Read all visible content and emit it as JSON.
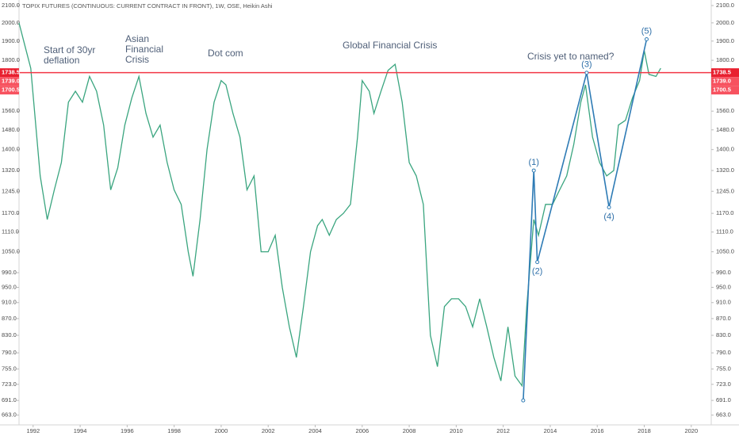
{
  "chart_data": {
    "type": "line",
    "title": "TOPIX FUTURES (CONTINUOUS: CURRENT CONTRACT IN FRONT), 1W, OSE, Heikin Ashi",
    "log_scale": true,
    "grid": false,
    "color": "#3aa57f",
    "x": [
      1991.4,
      1991.6,
      1991.9,
      1992.3,
      1992.6,
      1992.9,
      1993.2,
      1993.5,
      1993.8,
      1994.1,
      1994.4,
      1994.7,
      1995.0,
      1995.3,
      1995.6,
      1995.9,
      1996.2,
      1996.5,
      1996.8,
      1997.1,
      1997.4,
      1997.7,
      1998.0,
      1998.3,
      1998.6,
      1998.8,
      1999.1,
      1999.4,
      1999.7,
      2000.0,
      2000.2,
      2000.5,
      2000.8,
      2001.1,
      2001.4,
      2001.7,
      2002.0,
      2002.3,
      2002.6,
      2002.9,
      2003.2,
      2003.5,
      2003.8,
      2004.1,
      2004.3,
      2004.6,
      2004.9,
      2005.2,
      2005.5,
      2005.8,
      2006.0,
      2006.3,
      2006.5,
      2006.8,
      2007.1,
      2007.4,
      2007.7,
      2008.0,
      2008.3,
      2008.6,
      2008.9,
      2009.2,
      2009.5,
      2009.8,
      2010.1,
      2010.4,
      2010.7,
      2011.0,
      2011.3,
      2011.6,
      2011.9,
      2012.2,
      2012.5,
      2012.8,
      2013.0,
      2013.3,
      2013.5,
      2013.8,
      2014.1,
      2014.4,
      2014.7,
      2015.0,
      2015.3,
      2015.5,
      2015.8,
      2016.1,
      2016.4,
      2016.7,
      2016.9,
      2017.2,
      2017.5,
      2017.8,
      2018.0,
      2018.2,
      2018.5,
      2018.7
    ],
    "values": [
      2000,
      1900,
      1760,
      1300,
      1150,
      1250,
      1350,
      1600,
      1650,
      1600,
      1720,
      1650,
      1500,
      1250,
      1330,
      1500,
      1620,
      1720,
      1550,
      1450,
      1500,
      1350,
      1250,
      1200,
      1050,
      980,
      1150,
      1400,
      1600,
      1700,
      1680,
      1550,
      1450,
      1250,
      1300,
      1050,
      1050,
      1100,
      950,
      850,
      780,
      900,
      1050,
      1130,
      1150,
      1100,
      1150,
      1170,
      1200,
      1450,
      1700,
      1650,
      1550,
      1650,
      1750,
      1780,
      1600,
      1350,
      1300,
      1200,
      830,
      760,
      900,
      920,
      920,
      900,
      850,
      920,
      850,
      780,
      730,
      850,
      740,
      720,
      900,
      1150,
      1100,
      1200,
      1200,
      1250,
      1300,
      1420,
      1600,
      1680,
      1450,
      1350,
      1300,
      1320,
      1500,
      1520,
      1620,
      1700,
      1850,
      1730,
      1720,
      1760
    ],
    "xlim": [
      1991.4,
      2020.85
    ],
    "xticks": [
      1992,
      1994,
      1996,
      1998,
      2000,
      2002,
      2004,
      2006,
      2008,
      2010,
      2012,
      2014,
      2016,
      2018,
      2020
    ],
    "ylim": [
      645,
      2133
    ],
    "yticks": [
      {
        "value": 663,
        "label": "663.0"
      },
      {
        "value": 691,
        "label": "691.0"
      },
      {
        "value": 723,
        "label": "723.0"
      },
      {
        "value": 755,
        "label": "755.0"
      },
      {
        "value": 790,
        "label": "790.0"
      },
      {
        "value": 830,
        "label": "830.0"
      },
      {
        "value": 870,
        "label": "870.0"
      },
      {
        "value": 910,
        "label": "910.0"
      },
      {
        "value": 950,
        "label": "950.0"
      },
      {
        "value": 990,
        "label": "990.0"
      },
      {
        "value": 1050,
        "label": "1050.0"
      },
      {
        "value": 1110,
        "label": "1110.0"
      },
      {
        "value": 1170,
        "label": "1170.0"
      },
      {
        "value": 1245,
        "label": "1245.0"
      },
      {
        "value": 1320,
        "label": "1320.0"
      },
      {
        "value": 1400,
        "label": "1400.0"
      },
      {
        "value": 1480,
        "label": "1480.0"
      },
      {
        "value": 1560,
        "label": "1560.0"
      },
      {
        "value": 1800,
        "label": "1800.0"
      },
      {
        "value": 1900,
        "label": "1900.0"
      },
      {
        "value": 2000,
        "label": "2000.0"
      },
      {
        "value": 2100,
        "label": "2100.0"
      }
    ],
    "price_labels": [
      {
        "value": 1738.5,
        "label": "1738.5"
      },
      {
        "value": 1739.0,
        "label": "1739.0"
      },
      {
        "value": 1700.5,
        "label": "1700.5"
      }
    ],
    "annotations": [
      [
        "Start of 30yr",
        "deflation"
      ],
      [
        "Asian",
        "Financial",
        "Crisis"
      ],
      [
        "Dot com"
      ],
      [
        "Global Financial Crisis"
      ],
      [
        "Crisis yet to named?"
      ]
    ],
    "wave": {
      "labels": [
        null,
        "(1)",
        "(2)",
        "(3)",
        "(4)",
        "(5)"
      ],
      "x": [
        2012.85,
        2013.3,
        2013.45,
        2015.55,
        2016.5,
        2018.1
      ],
      "y": [
        691,
        1320,
        1020,
        1738,
        1190,
        1910
      ],
      "color": "#2e7bb5"
    }
  }
}
